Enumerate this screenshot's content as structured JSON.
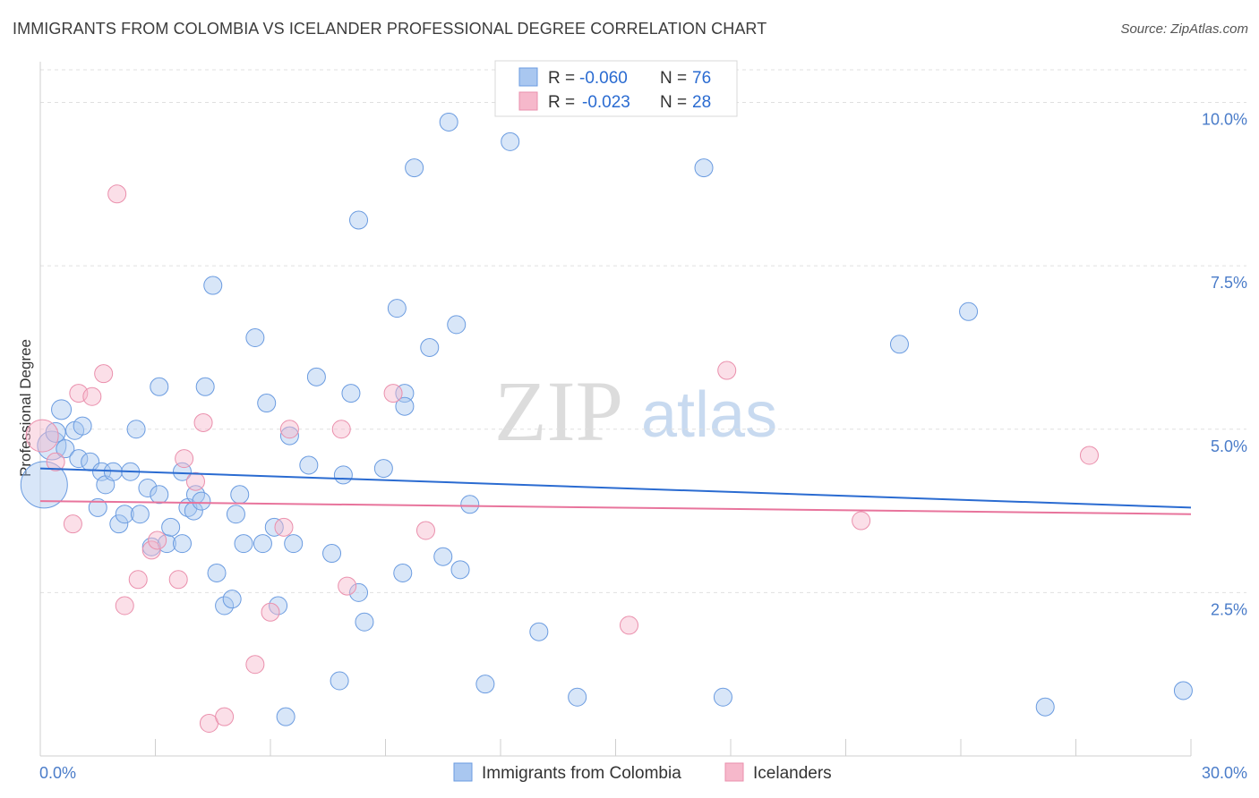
{
  "header": {
    "title": "IMMIGRANTS FROM COLOMBIA VS ICELANDER PROFESSIONAL DEGREE CORRELATION CHART",
    "source": "Source: ZipAtlas.com"
  },
  "watermark": {
    "zip": "ZIP",
    "atlas": "atlas"
  },
  "legend": {
    "rows": [
      {
        "r_label": "R =",
        "r_value": "-0.060",
        "n_label": "N =",
        "n_value": "76",
        "color": "#a9c7f0"
      },
      {
        "r_label": "R =",
        "r_value": "-0.023",
        "n_label": "N =",
        "n_value": "28",
        "color": "#f6b8cb"
      }
    ]
  },
  "bottom_legend": {
    "items": [
      {
        "label": "Immigrants from Colombia",
        "color": "#a9c7f0"
      },
      {
        "label": "Icelanders",
        "color": "#f6b8cb"
      }
    ]
  },
  "chart_data": {
    "type": "scatter",
    "ylabel": "Professional Degree",
    "xlim": [
      0,
      30
    ],
    "ylim": [
      0,
      10.5
    ],
    "x_tick_labels": [
      "0.0%",
      "30.0%"
    ],
    "y_ticks": [
      2.5,
      5.0,
      7.5,
      10.0
    ],
    "y_tick_labels": [
      "2.5%",
      "5.0%",
      "7.5%",
      "10.0%"
    ],
    "grid": true,
    "series": [
      {
        "name": "Immigrants from Colombia",
        "color": "#a9c7f0",
        "stroke": "#6a9be0",
        "trend": {
          "x": [
            0,
            30
          ],
          "y": [
            4.4,
            3.8
          ],
          "color": "#2a6bd1"
        },
        "points": [
          [
            0.1,
            4.15,
            26
          ],
          [
            0.3,
            4.75,
            16
          ],
          [
            0.4,
            4.95,
            11
          ],
          [
            0.55,
            5.3,
            11
          ],
          [
            0.65,
            4.7,
            10
          ],
          [
            0.9,
            4.98,
            10
          ],
          [
            1.0,
            4.55,
            10
          ],
          [
            1.1,
            5.05,
            10
          ],
          [
            1.3,
            4.5,
            10
          ],
          [
            1.5,
            3.8,
            10
          ],
          [
            1.6,
            4.35,
            10
          ],
          [
            1.7,
            4.15,
            10
          ],
          [
            1.9,
            4.35,
            10
          ],
          [
            2.05,
            3.55,
            10
          ],
          [
            2.2,
            3.7,
            10
          ],
          [
            2.35,
            4.35,
            10
          ],
          [
            2.5,
            5.0,
            10
          ],
          [
            2.6,
            3.7,
            10
          ],
          [
            2.8,
            4.1,
            10
          ],
          [
            2.9,
            3.2,
            10
          ],
          [
            3.1,
            4.0,
            10
          ],
          [
            3.1,
            5.65,
            10
          ],
          [
            3.3,
            3.25,
            10
          ],
          [
            3.4,
            3.5,
            10
          ],
          [
            3.7,
            3.25,
            10
          ],
          [
            3.7,
            4.35,
            10
          ],
          [
            3.85,
            3.8,
            10
          ],
          [
            4.0,
            3.75,
            10
          ],
          [
            4.05,
            4.0,
            10
          ],
          [
            4.2,
            3.9,
            10
          ],
          [
            4.3,
            5.65,
            10
          ],
          [
            4.5,
            7.2,
            10
          ],
          [
            4.6,
            2.8,
            10
          ],
          [
            4.8,
            2.3,
            10
          ],
          [
            5.0,
            2.4,
            10
          ],
          [
            5.1,
            3.7,
            10
          ],
          [
            5.2,
            4.0,
            10
          ],
          [
            5.3,
            3.25,
            10
          ],
          [
            5.6,
            6.4,
            10
          ],
          [
            5.8,
            3.25,
            10
          ],
          [
            5.9,
            5.4,
            10
          ],
          [
            6.1,
            3.5,
            10
          ],
          [
            6.2,
            2.3,
            10
          ],
          [
            6.4,
            0.6,
            10
          ],
          [
            6.5,
            4.9,
            10
          ],
          [
            6.6,
            3.25,
            10
          ],
          [
            7.0,
            4.45,
            10
          ],
          [
            7.2,
            5.8,
            10
          ],
          [
            7.6,
            3.1,
            10
          ],
          [
            7.8,
            1.15,
            10
          ],
          [
            7.9,
            4.3,
            10
          ],
          [
            8.1,
            5.55,
            10
          ],
          [
            8.3,
            2.5,
            10
          ],
          [
            8.3,
            8.2,
            10
          ],
          [
            8.45,
            2.05,
            10
          ],
          [
            8.95,
            4.4,
            10
          ],
          [
            9.3,
            6.85,
            10
          ],
          [
            9.45,
            2.8,
            10
          ],
          [
            9.5,
            5.55,
            10
          ],
          [
            9.5,
            5.35,
            10
          ],
          [
            9.75,
            9.0,
            10
          ],
          [
            10.15,
            6.25,
            10
          ],
          [
            10.5,
            3.05,
            10
          ],
          [
            10.65,
            9.7,
            10
          ],
          [
            10.85,
            6.6,
            10
          ],
          [
            10.95,
            2.85,
            10
          ],
          [
            11.2,
            3.85,
            10
          ],
          [
            11.6,
            1.1,
            10
          ],
          [
            12.25,
            9.4,
            10
          ],
          [
            13.0,
            1.9,
            10
          ],
          [
            14.0,
            0.9,
            10
          ],
          [
            17.3,
            9.0,
            10
          ],
          [
            17.8,
            0.9,
            10
          ],
          [
            22.4,
            6.3,
            10
          ],
          [
            24.2,
            6.8,
            10
          ],
          [
            26.2,
            0.75,
            10
          ],
          [
            29.8,
            1.0,
            10
          ]
        ]
      },
      {
        "name": "Icelanders",
        "color": "#f6b8cb",
        "stroke": "#ea8fac",
        "trend": {
          "x": [
            0,
            30
          ],
          "y": [
            3.9,
            3.7
          ],
          "color": "#e8749c"
        },
        "points": [
          [
            0.05,
            4.9,
            18
          ],
          [
            0.4,
            4.5,
            10
          ],
          [
            0.85,
            3.55,
            10
          ],
          [
            1.0,
            5.55,
            10
          ],
          [
            1.35,
            5.5,
            10
          ],
          [
            1.65,
            5.85,
            10
          ],
          [
            2.0,
            8.6,
            10
          ],
          [
            2.2,
            2.3,
            10
          ],
          [
            2.55,
            2.7,
            10
          ],
          [
            2.9,
            3.15,
            10
          ],
          [
            3.05,
            3.3,
            10
          ],
          [
            3.6,
            2.7,
            10
          ],
          [
            3.75,
            4.55,
            10
          ],
          [
            4.05,
            4.2,
            10
          ],
          [
            4.25,
            5.1,
            10
          ],
          [
            4.4,
            0.5,
            10
          ],
          [
            4.8,
            0.6,
            10
          ],
          [
            5.6,
            1.4,
            10
          ],
          [
            6.0,
            2.2,
            10
          ],
          [
            6.35,
            3.5,
            10
          ],
          [
            6.5,
            5.0,
            10
          ],
          [
            7.85,
            5.0,
            10
          ],
          [
            8.0,
            2.6,
            10
          ],
          [
            9.2,
            5.55,
            10
          ],
          [
            10.05,
            3.45,
            10
          ],
          [
            15.35,
            2.0,
            10
          ],
          [
            17.9,
            5.9,
            10
          ],
          [
            21.4,
            3.6,
            10
          ],
          [
            27.35,
            4.6,
            10
          ]
        ]
      }
    ]
  }
}
